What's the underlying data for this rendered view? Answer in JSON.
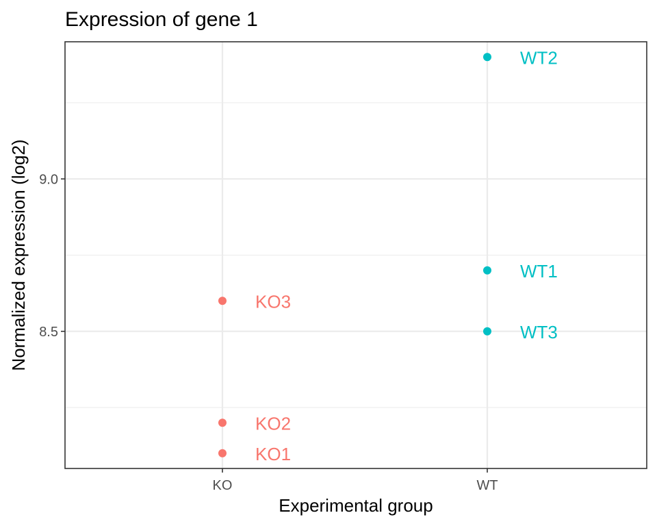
{
  "chart_data": {
    "type": "scatter",
    "title": "Expression of gene 1",
    "xlabel": "Experimental group",
    "ylabel": "Normalized expression (log2)",
    "categories": [
      "KO",
      "WT"
    ],
    "yticks": [
      8.5,
      9.0
    ],
    "ytick_labels": [
      "8.5",
      "9.0"
    ],
    "ylim": [
      8.05,
      9.45
    ],
    "grid": true,
    "legend": "none",
    "series": [
      {
        "color": "#f8766d",
        "points": [
          {
            "x": "KO",
            "y": 8.1,
            "label": "KO1"
          },
          {
            "x": "KO",
            "y": 8.2,
            "label": "KO2"
          },
          {
            "x": "KO",
            "y": 8.6,
            "label": "KO3"
          }
        ]
      },
      {
        "color": "#00bfc4",
        "points": [
          {
            "x": "WT",
            "y": 8.7,
            "label": "WT1"
          },
          {
            "x": "WT",
            "y": 9.4,
            "label": "WT2"
          },
          {
            "x": "WT",
            "y": 8.5,
            "label": "WT3"
          }
        ]
      }
    ]
  }
}
